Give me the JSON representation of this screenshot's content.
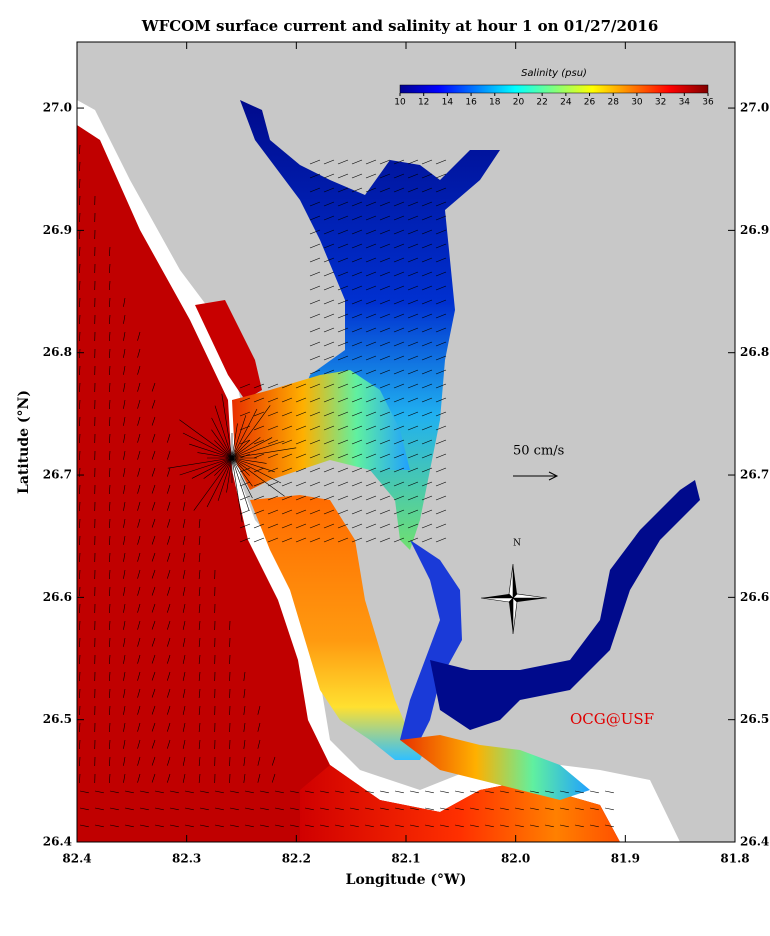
{
  "title": "WFCOM surface current and salinity at hour 1 on 01/27/2016",
  "x_axis": {
    "label": "Longitude (°W)",
    "lim": [
      82.4,
      81.8
    ],
    "ticks": [
      82.4,
      82.3,
      82.2,
      82.1,
      {
        "value": 82,
        "label": "82.0"
      },
      81.9,
      81.8
    ]
  },
  "y_axis": {
    "label": "Latitude (°N)",
    "lim": [
      26.4,
      27.054
    ],
    "ticks": [
      26.4,
      26.5,
      26.6,
      26.7,
      26.8,
      26.9,
      {
        "value": 27,
        "label": "27.0"
      }
    ]
  },
  "colorbar": {
    "label": "Salinity (psu)",
    "lim": [
      10,
      36
    ],
    "ticks": [
      10,
      12,
      14,
      16,
      18,
      20,
      22,
      24,
      26,
      28,
      30,
      32,
      34,
      36
    ]
  },
  "scale_label": "50 cm/s",
  "compass_label": "N",
  "credit": "OCG@USF"
}
